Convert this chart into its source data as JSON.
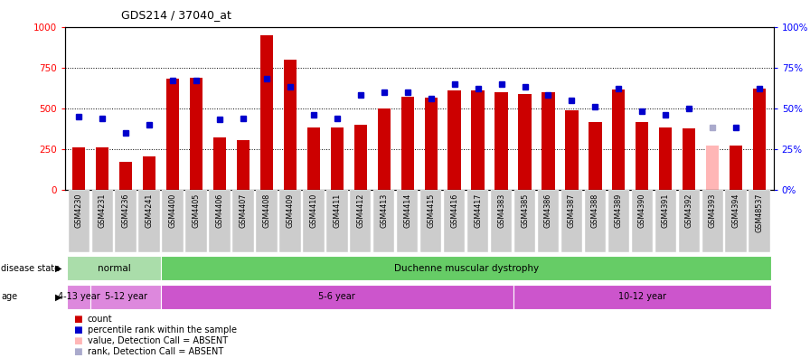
{
  "title": "GDS214 / 37040_at",
  "samples": [
    "GSM4230",
    "GSM4231",
    "GSM4236",
    "GSM4241",
    "GSM4400",
    "GSM4405",
    "GSM4406",
    "GSM4407",
    "GSM4408",
    "GSM4409",
    "GSM4410",
    "GSM4411",
    "GSM4412",
    "GSM4413",
    "GSM4414",
    "GSM4415",
    "GSM4416",
    "GSM4417",
    "GSM4383",
    "GSM4385",
    "GSM4386",
    "GSM4387",
    "GSM4388",
    "GSM4389",
    "GSM4390",
    "GSM4391",
    "GSM4392",
    "GSM4393",
    "GSM4394",
    "GSM48537"
  ],
  "counts": [
    260,
    260,
    170,
    205,
    680,
    690,
    320,
    305,
    950,
    800,
    385,
    385,
    400,
    500,
    570,
    565,
    610,
    610,
    600,
    590,
    600,
    490,
    415,
    615,
    415,
    380,
    375,
    270,
    270,
    620
  ],
  "percentiles": [
    45,
    44,
    35,
    40,
    67,
    67,
    43,
    44,
    68,
    63,
    46,
    44,
    58,
    60,
    60,
    56,
    65,
    62,
    65,
    63,
    58,
    55,
    51,
    62,
    48,
    46,
    50,
    38,
    38,
    62
  ],
  "absent_indices": [
    27
  ],
  "absent_count_val": 270,
  "absent_rank_val": 38,
  "bar_color": "#cc0000",
  "absent_bar_color": "#ffb6b6",
  "dot_color": "#0000cc",
  "absent_dot_color": "#aaaacc",
  "ylim_left": [
    0,
    1000
  ],
  "ylim_right": [
    0,
    100
  ],
  "yticks_left": [
    0,
    250,
    500,
    750,
    1000
  ],
  "yticks_right": [
    0,
    25,
    50,
    75,
    100
  ],
  "disease_state_groups": [
    {
      "label": "normal",
      "start": 0,
      "end": 4,
      "color": "#aaddaa"
    },
    {
      "label": "Duchenne muscular dystrophy",
      "start": 4,
      "end": 30,
      "color": "#66cc66"
    }
  ],
  "age_groups": [
    {
      "label": "4-13 year",
      "start": 0,
      "end": 1,
      "color": "#dd88dd"
    },
    {
      "label": "5-12 year",
      "start": 1,
      "end": 4,
      "color": "#dd88dd"
    },
    {
      "label": "5-6 year",
      "start": 4,
      "end": 19,
      "color": "#cc55cc"
    },
    {
      "label": "10-12 year",
      "start": 19,
      "end": 30,
      "color": "#cc55cc"
    }
  ],
  "tick_bg_color": "#cccccc",
  "legend_items": [
    {
      "label": "count",
      "color": "#cc0000"
    },
    {
      "label": "percentile rank within the sample",
      "color": "#0000cc"
    },
    {
      "label": "value, Detection Call = ABSENT",
      "color": "#ffb6b6"
    },
    {
      "label": "rank, Detection Call = ABSENT",
      "color": "#aaaacc"
    }
  ]
}
